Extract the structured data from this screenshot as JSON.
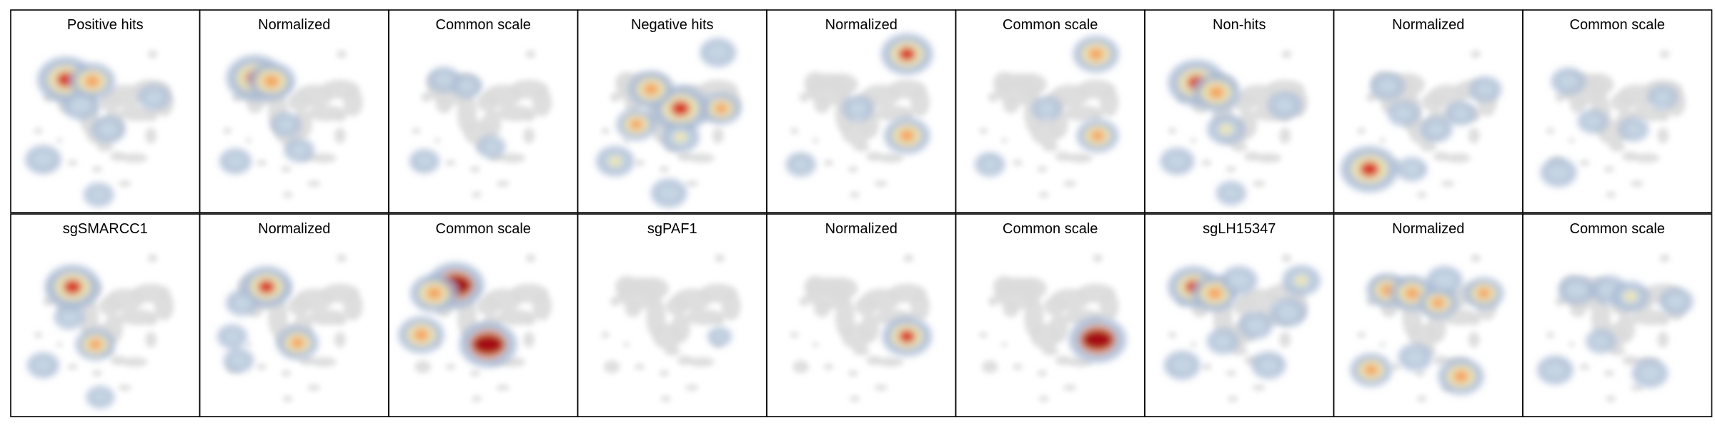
{
  "figure_title": "",
  "colors": {
    "background_cells": "#dadada",
    "low": "#a7b9d4",
    "mid_low": "#c8d8e4",
    "mid": "#f2e8b0",
    "mid_high": "#f4a15c",
    "high": "#d7301f",
    "max": "#a50f15",
    "frame": "#000000"
  },
  "chart_data": {
    "type": "heatmap",
    "description_kind": "UMAP density grid",
    "rows": 2,
    "cols": 9,
    "grid": false,
    "legend": "none",
    "panels": [
      {
        "title": "Positive hits",
        "view": "raw",
        "hotspots": [
          [
            0.26,
            0.24,
            1.0
          ],
          [
            0.42,
            0.25,
            0.7
          ],
          [
            0.35,
            0.4,
            0.45
          ],
          [
            0.52,
            0.55,
            0.4
          ],
          [
            0.12,
            0.74,
            0.45
          ],
          [
            0.8,
            0.35,
            0.35
          ],
          [
            0.46,
            0.96,
            0.3
          ]
        ]
      },
      {
        "title": "Normalized",
        "view": "norm",
        "hotspots": [
          [
            0.26,
            0.23,
            1.0
          ],
          [
            0.36,
            0.25,
            0.75
          ],
          [
            0.45,
            0.52,
            0.3
          ],
          [
            0.14,
            0.75,
            0.35
          ],
          [
            0.53,
            0.68,
            0.3
          ]
        ]
      },
      {
        "title": "Common scale",
        "view": "common",
        "hotspots": [
          [
            0.26,
            0.24,
            0.35
          ],
          [
            0.4,
            0.28,
            0.3
          ],
          [
            0.14,
            0.75,
            0.3
          ],
          [
            0.55,
            0.66,
            0.25
          ]
        ]
      },
      {
        "title": "Negative hits",
        "view": "raw",
        "hotspots": [
          [
            0.55,
            0.42,
            1.0
          ],
          [
            0.37,
            0.3,
            0.7
          ],
          [
            0.28,
            0.52,
            0.55
          ],
          [
            0.8,
            0.42,
            0.55
          ],
          [
            0.78,
            0.07,
            0.45
          ],
          [
            0.15,
            0.75,
            0.5
          ],
          [
            0.48,
            0.95,
            0.45
          ],
          [
            0.55,
            0.6,
            0.5
          ]
        ]
      },
      {
        "title": "Normalized",
        "view": "norm",
        "hotspots": [
          [
            0.78,
            0.08,
            0.85
          ],
          [
            0.78,
            0.59,
            0.7
          ],
          [
            0.48,
            0.42,
            0.35
          ],
          [
            0.13,
            0.77,
            0.3
          ]
        ]
      },
      {
        "title": "Common scale",
        "view": "common",
        "hotspots": [
          [
            0.78,
            0.08,
            0.7
          ],
          [
            0.79,
            0.59,
            0.6
          ],
          [
            0.48,
            0.42,
            0.3
          ],
          [
            0.13,
            0.77,
            0.3
          ]
        ]
      },
      {
        "title": "Non-hits",
        "view": "raw",
        "hotspots": [
          [
            0.24,
            0.26,
            1.0
          ],
          [
            0.36,
            0.32,
            0.75
          ],
          [
            0.42,
            0.55,
            0.5
          ],
          [
            0.78,
            0.4,
            0.4
          ],
          [
            0.12,
            0.75,
            0.4
          ],
          [
            0.45,
            0.95,
            0.3
          ]
        ]
      },
      {
        "title": "Normalized",
        "view": "norm",
        "hotspots": [
          [
            0.14,
            0.8,
            1.0
          ],
          [
            0.25,
            0.28,
            0.4
          ],
          [
            0.35,
            0.45,
            0.35
          ],
          [
            0.55,
            0.55,
            0.35
          ],
          [
            0.7,
            0.45,
            0.3
          ],
          [
            0.85,
            0.3,
            0.35
          ],
          [
            0.4,
            0.8,
            0.3
          ]
        ]
      },
      {
        "title": "Common scale",
        "view": "common",
        "hotspots": [
          [
            0.14,
            0.82,
            0.45
          ],
          [
            0.2,
            0.25,
            0.4
          ],
          [
            0.35,
            0.5,
            0.3
          ],
          [
            0.6,
            0.55,
            0.3
          ],
          [
            0.78,
            0.35,
            0.3
          ]
        ]
      },
      {
        "title": "sgSMARCC1",
        "view": "raw",
        "hotspots": [
          [
            0.3,
            0.26,
            0.95
          ],
          [
            0.44,
            0.62,
            0.55
          ],
          [
            0.12,
            0.75,
            0.35
          ],
          [
            0.28,
            0.45,
            0.3
          ],
          [
            0.47,
            0.95,
            0.25
          ]
        ]
      },
      {
        "title": "Normalized",
        "view": "norm",
        "hotspots": [
          [
            0.33,
            0.26,
            0.85
          ],
          [
            0.52,
            0.61,
            0.6
          ],
          [
            0.18,
            0.36,
            0.35
          ],
          [
            0.12,
            0.57,
            0.3
          ],
          [
            0.16,
            0.72,
            0.3
          ]
        ]
      },
      {
        "title": "Common scale",
        "view": "common",
        "hotspots": [
          [
            0.33,
            0.25,
            1.2
          ],
          [
            0.2,
            0.3,
            0.75
          ],
          [
            0.12,
            0.56,
            0.7
          ],
          [
            0.53,
            0.62,
            1.15
          ]
        ]
      },
      {
        "title": "sgPAF1",
        "view": "raw",
        "hotspots": [
          [
            0.79,
            0.57,
            0.15
          ]
        ]
      },
      {
        "title": "Normalized",
        "view": "norm",
        "hotspots": [
          [
            0.78,
            0.57,
            0.8
          ]
        ]
      },
      {
        "title": "Common scale",
        "view": "common",
        "hotspots": [
          [
            0.79,
            0.59,
            1.2
          ]
        ]
      },
      {
        "title": "sgLH15347",
        "view": "raw",
        "hotspots": [
          [
            0.22,
            0.26,
            0.85
          ],
          [
            0.35,
            0.3,
            0.7
          ],
          [
            0.5,
            0.22,
            0.45
          ],
          [
            0.88,
            0.22,
            0.5
          ],
          [
            0.8,
            0.42,
            0.45
          ],
          [
            0.6,
            0.5,
            0.4
          ],
          [
            0.15,
            0.75,
            0.45
          ],
          [
            0.68,
            0.75,
            0.4
          ],
          [
            0.4,
            0.6,
            0.35
          ]
        ]
      },
      {
        "title": "Normalized",
        "view": "norm",
        "hotspots": [
          [
            0.25,
            0.28,
            0.6
          ],
          [
            0.4,
            0.3,
            0.65
          ],
          [
            0.56,
            0.36,
            0.55
          ],
          [
            0.84,
            0.3,
            0.55
          ],
          [
            0.15,
            0.78,
            0.6
          ],
          [
            0.7,
            0.82,
            0.7
          ],
          [
            0.42,
            0.7,
            0.4
          ],
          [
            0.6,
            0.22,
            0.45
          ]
        ]
      },
      {
        "title": "Common scale",
        "view": "common",
        "hotspots": [
          [
            0.25,
            0.28,
            0.45
          ],
          [
            0.45,
            0.28,
            0.45
          ],
          [
            0.58,
            0.32,
            0.5
          ],
          [
            0.86,
            0.35,
            0.4
          ],
          [
            0.12,
            0.78,
            0.45
          ],
          [
            0.7,
            0.8,
            0.45
          ],
          [
            0.4,
            0.6,
            0.3
          ]
        ]
      }
    ]
  }
}
